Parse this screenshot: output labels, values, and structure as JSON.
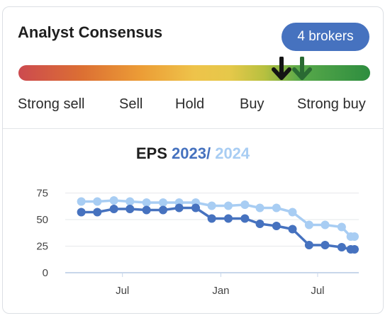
{
  "header": {
    "title": "Analyst Consensus",
    "brokers_badge": "4 brokers"
  },
  "consensus": {
    "colors": {
      "current": "#141414",
      "previous": "#2a6a33"
    },
    "scale_labels": [
      "Strong sell",
      "Sell",
      "Hold",
      "Buy",
      "Strong buy"
    ]
  },
  "eps": {
    "prefix": "EPS",
    "year_a": "2023",
    "sep": "/",
    "year_b": "2024"
  },
  "colors": {
    "series_2023": "#4672bf",
    "series_2024": "#a8cdf3",
    "badge": "#4672bf"
  },
  "chart_data": {
    "type": "line",
    "x": [
      "2022-04-15",
      "2022-05-15",
      "2022-06-15",
      "2022-07-15",
      "2022-08-15",
      "2022-09-15",
      "2022-10-15",
      "2022-11-15",
      "2022-12-15",
      "2023-01-15",
      "2023-02-15",
      "2023-03-15",
      "2023-04-15",
      "2023-05-15",
      "2023-06-15",
      "2023-07-15",
      "2023-08-15",
      "2023-09-01",
      "2023-09-08"
    ],
    "series": [
      {
        "name": "2023",
        "values": [
          57,
          57,
          60,
          60,
          59,
          59,
          61,
          61,
          51,
          51,
          51,
          46,
          44,
          41,
          26,
          26,
          24,
          22,
          22
        ]
      },
      {
        "name": "2024",
        "values": [
          67,
          67,
          68,
          67,
          66,
          66,
          66,
          66,
          63,
          63,
          64,
          61,
          61,
          57,
          45,
          45,
          43,
          34,
          34
        ]
      }
    ],
    "yticks": [
      0,
      25,
      50,
      75
    ],
    "xticks": [
      "Jul",
      "Jan",
      "Jul"
    ],
    "ylim": [
      0,
      80
    ],
    "grid": true
  }
}
